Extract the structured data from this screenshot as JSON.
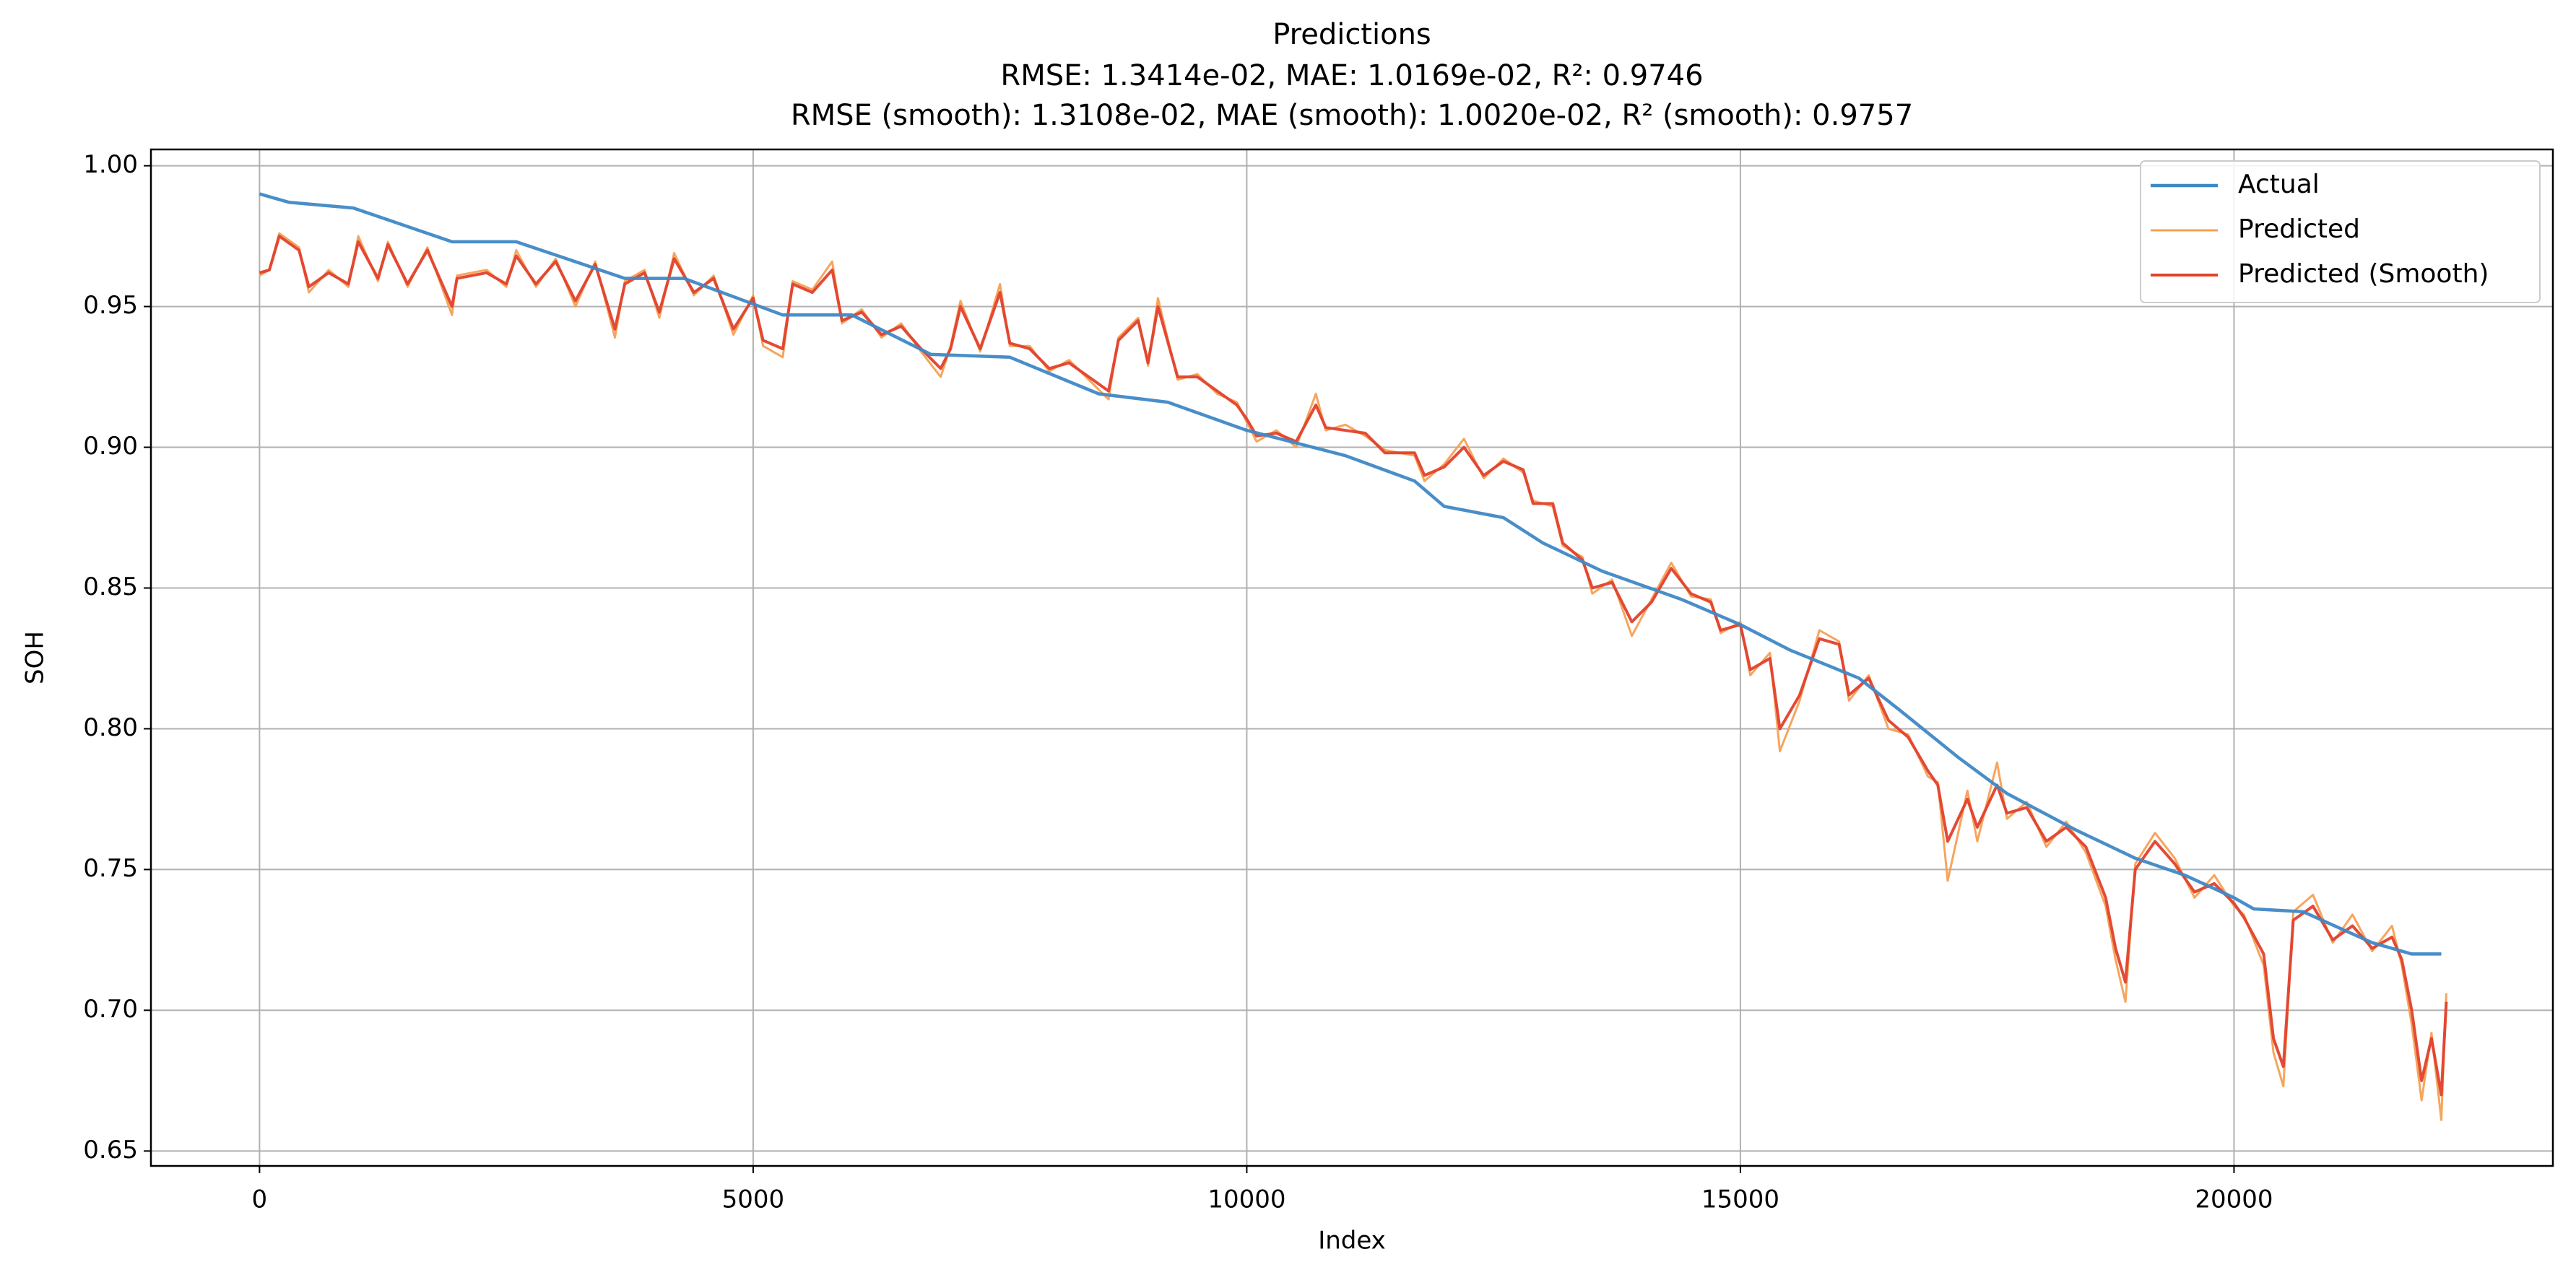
{
  "chart_data": {
    "type": "line",
    "title": "Predictions",
    "subtitle": [
      "RMSE: 1.3414e-02, MAE: 1.0169e-02, R²: 0.9746",
      "RMSE (smooth): 1.3108e-02, MAE (smooth): 1.0020e-02, R² (smooth): 0.9757"
    ],
    "x_label": "Index",
    "y_label": "SOH",
    "xlim": [
      -1100,
      23230
    ],
    "ylim": [
      0.6447,
      1.0058
    ],
    "xticks": [
      0,
      5000,
      10000,
      15000,
      20000
    ],
    "yticks": [
      0.65,
      {
        "value": 0.7,
        "label": "0.70"
      },
      0.75,
      {
        "value": 0.8,
        "label": "0.80"
      },
      0.85,
      {
        "value": 0.9,
        "label": "0.90"
      },
      0.95,
      {
        "value": 1.0,
        "label": "1.00"
      }
    ],
    "grid": true,
    "legend": "upper right",
    "x": [
      0,
      100,
      200,
      400,
      500,
      700,
      900,
      1000,
      1200,
      1300,
      1500,
      1700,
      1950,
      2000,
      2300,
      2500,
      2600,
      2800,
      3000,
      3200,
      3400,
      3600,
      3700,
      3900,
      4050,
      4200,
      4400,
      4600,
      4800,
      5000,
      5100,
      5300,
      5400,
      5600,
      5800,
      5900,
      6100,
      6300,
      6500,
      6700,
      6900,
      7000,
      7100,
      7300,
      7500,
      7600,
      7800,
      8000,
      8200,
      8400,
      8600,
      8700,
      8900,
      9000,
      9100,
      9300,
      9500,
      9700,
      9900,
      10000,
      10100,
      10300,
      10500,
      10700,
      10800,
      11000,
      11200,
      11400,
      11700,
      11800,
      12000,
      12200,
      12400,
      12600,
      12800,
      12900,
      13100,
      13200,
      13400,
      13500,
      13700,
      13900,
      14100,
      14300,
      14500,
      14700,
      14800,
      15000,
      15100,
      15300,
      15400,
      15600,
      15800,
      16000,
      16100,
      16300,
      16500,
      16700,
      16900,
      17000,
      17100,
      17300,
      17400,
      17600,
      17700,
      17900,
      18100,
      18300,
      18500,
      18700,
      18800,
      18900,
      19000,
      19200,
      19400,
      19600,
      19800,
      20000,
      20100,
      20300,
      20400,
      20500,
      20600,
      20800,
      21000,
      21200,
      21400,
      21600,
      21700,
      21800,
      21900,
      22000,
      22100,
      22150
    ],
    "series": [
      {
        "name": "Actual",
        "color": "#3f88c5",
        "width": 4.5,
        "x": [
          0,
          300,
          950,
          1950,
          2600,
          3700,
          4300,
          5300,
          6000,
          6800,
          7600,
          8500,
          9200,
          10000,
          11000,
          11700,
          12000,
          12600,
          13000,
          13600,
          14400,
          15000,
          15500,
          16200,
          16600,
          17200,
          17700,
          18400,
          19000,
          19500,
          20000,
          20200,
          20700,
          21400,
          21800,
          22100
        ],
        "values": [
          0.99,
          0.987,
          0.985,
          0.973,
          0.973,
          0.96,
          0.96,
          0.947,
          0.947,
          0.933,
          0.932,
          0.919,
          0.916,
          0.906,
          0.897,
          0.888,
          0.879,
          0.875,
          0.866,
          0.856,
          0.846,
          0.837,
          0.828,
          0.818,
          0.807,
          0.79,
          0.777,
          0.764,
          0.754,
          0.748,
          0.74,
          0.736,
          0.735,
          0.724,
          0.72,
          0.72
        ]
      },
      {
        "name": "Predicted",
        "color": "#f5a054",
        "width": 3,
        "values": [
          0.961,
          0.963,
          0.976,
          0.971,
          0.955,
          0.963,
          0.957,
          0.975,
          0.959,
          0.973,
          0.957,
          0.971,
          0.947,
          0.961,
          0.963,
          0.957,
          0.97,
          0.957,
          0.967,
          0.95,
          0.966,
          0.939,
          0.959,
          0.963,
          0.946,
          0.969,
          0.954,
          0.961,
          0.94,
          0.954,
          0.936,
          0.932,
          0.959,
          0.956,
          0.966,
          0.944,
          0.949,
          0.939,
          0.944,
          0.934,
          0.925,
          0.936,
          0.952,
          0.934,
          0.958,
          0.936,
          0.936,
          0.927,
          0.931,
          0.924,
          0.917,
          0.939,
          0.946,
          0.929,
          0.953,
          0.924,
          0.926,
          0.919,
          0.916,
          0.909,
          0.902,
          0.906,
          0.9,
          0.919,
          0.906,
          0.908,
          0.904,
          0.899,
          0.897,
          0.888,
          0.894,
          0.903,
          0.889,
          0.896,
          0.891,
          0.881,
          0.879,
          0.865,
          0.861,
          0.848,
          0.853,
          0.833,
          0.846,
          0.859,
          0.847,
          0.846,
          0.834,
          0.838,
          0.819,
          0.827,
          0.792,
          0.81,
          0.835,
          0.831,
          0.81,
          0.819,
          0.8,
          0.798,
          0.783,
          0.781,
          0.746,
          0.778,
          0.76,
          0.788,
          0.768,
          0.774,
          0.758,
          0.767,
          0.756,
          0.737,
          0.718,
          0.703,
          0.752,
          0.763,
          0.754,
          0.74,
          0.748,
          0.737,
          0.734,
          0.716,
          0.685,
          0.673,
          0.735,
          0.741,
          0.724,
          0.734,
          0.721,
          0.73,
          0.716,
          0.695,
          0.668,
          0.692,
          0.661,
          0.706
        ]
      },
      {
        "name": "Predicted (Smooth)",
        "color": "#e2412c",
        "width": 4,
        "values": [
          0.962,
          0.963,
          0.975,
          0.97,
          0.957,
          0.962,
          0.958,
          0.973,
          0.96,
          0.972,
          0.958,
          0.97,
          0.95,
          0.96,
          0.962,
          0.958,
          0.968,
          0.958,
          0.966,
          0.952,
          0.965,
          0.942,
          0.958,
          0.962,
          0.948,
          0.967,
          0.955,
          0.96,
          0.942,
          0.953,
          0.938,
          0.935,
          0.958,
          0.955,
          0.963,
          0.945,
          0.948,
          0.94,
          0.943,
          0.935,
          0.928,
          0.935,
          0.95,
          0.935,
          0.955,
          0.937,
          0.935,
          0.928,
          0.93,
          0.925,
          0.92,
          0.938,
          0.945,
          0.93,
          0.95,
          0.925,
          0.925,
          0.92,
          0.915,
          0.91,
          0.904,
          0.905,
          0.902,
          0.915,
          0.907,
          0.906,
          0.905,
          0.898,
          0.898,
          0.89,
          0.893,
          0.9,
          0.89,
          0.895,
          0.892,
          0.88,
          0.88,
          0.866,
          0.86,
          0.85,
          0.852,
          0.838,
          0.845,
          0.857,
          0.848,
          0.845,
          0.835,
          0.837,
          0.821,
          0.825,
          0.8,
          0.812,
          0.832,
          0.83,
          0.812,
          0.818,
          0.803,
          0.797,
          0.785,
          0.78,
          0.76,
          0.775,
          0.765,
          0.78,
          0.77,
          0.772,
          0.76,
          0.765,
          0.758,
          0.74,
          0.722,
          0.71,
          0.75,
          0.76,
          0.752,
          0.742,
          0.745,
          0.738,
          0.733,
          0.72,
          0.69,
          0.68,
          0.732,
          0.737,
          0.725,
          0.73,
          0.722,
          0.726,
          0.718,
          0.7,
          0.675,
          0.69,
          0.67,
          0.703
        ]
      }
    ]
  }
}
